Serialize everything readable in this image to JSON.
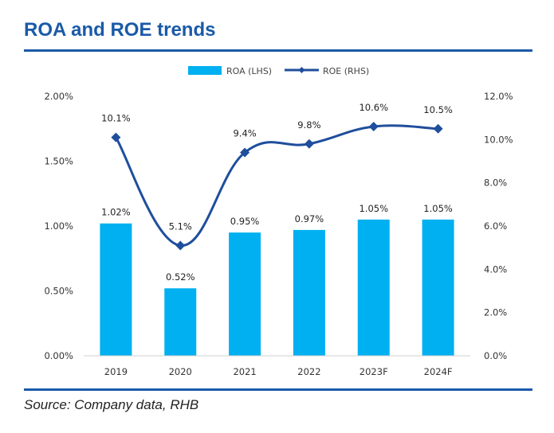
{
  "title": "ROA and ROE trends",
  "source": "Source: Company data, RHB",
  "colors": {
    "accent": "#1a5aa8",
    "bar": "#00b0f0",
    "line": "#1f4e9c"
  },
  "chart_data": {
    "type": "bar",
    "categories": [
      "2019",
      "2020",
      "2021",
      "2022",
      "2023F",
      "2024F"
    ],
    "series": [
      {
        "name": "ROA (LHS)",
        "type": "bar",
        "axis": "left",
        "values": [
          1.02,
          0.52,
          0.95,
          0.97,
          1.05,
          1.05
        ],
        "labels": [
          "1.02%",
          "0.52%",
          "0.95%",
          "0.97%",
          "1.05%",
          "1.05%"
        ]
      },
      {
        "name": "ROE (RHS)",
        "type": "line",
        "axis": "right",
        "values": [
          10.1,
          5.1,
          9.4,
          9.8,
          10.6,
          10.5
        ],
        "labels": [
          "10.1%",
          "5.1%",
          "9.4%",
          "9.8%",
          "10.6%",
          "10.5%"
        ]
      }
    ],
    "y_left": {
      "ylim": [
        0,
        2.0
      ],
      "ticks": [
        "0.00%",
        "0.50%",
        "1.00%",
        "1.50%",
        "2.00%"
      ]
    },
    "y_right": {
      "ylim": [
        0,
        12.0
      ],
      "ticks": [
        "0.0%",
        "2.0%",
        "4.0%",
        "6.0%",
        "8.0%",
        "10.0%",
        "12.0%"
      ]
    },
    "legend": "top-center",
    "grid": false
  }
}
